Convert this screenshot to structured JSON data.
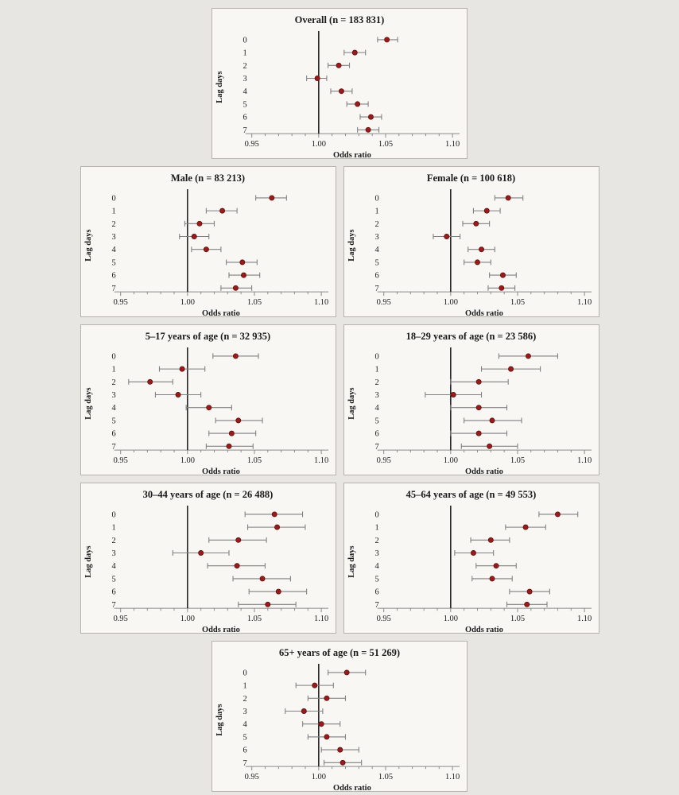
{
  "style": {
    "page_bg": "#e7e6e3",
    "panel_bg": "#f8f7f4",
    "panel_border": "#b6b3ae",
    "axis": "#8a8a8a",
    "text": "#1a1a1a",
    "refline": "#222222",
    "ci": "#808080",
    "point": "#9b1b1b",
    "pointEdge": "#5c0f0f"
  },
  "chart_data": [
    {
      "type": "scatter",
      "title": "Overall (n = 183 831)",
      "xlabel": "Odds ratio",
      "ylabel": "Lag days",
      "xlim": [
        0.95,
        1.1
      ],
      "xticks": [
        0.95,
        1.0,
        1.05,
        1.1
      ],
      "refline": 1.0,
      "categories": [
        "0",
        "1",
        "2",
        "3",
        "4",
        "5",
        "6",
        "7"
      ],
      "points": [
        {
          "or": 1.051,
          "lo": 1.044,
          "hi": 1.059
        },
        {
          "or": 1.027,
          "lo": 1.019,
          "hi": 1.035
        },
        {
          "or": 1.015,
          "lo": 1.007,
          "hi": 1.023
        },
        {
          "or": 0.999,
          "lo": 0.991,
          "hi": 1.006
        },
        {
          "or": 1.017,
          "lo": 1.009,
          "hi": 1.025
        },
        {
          "or": 1.029,
          "lo": 1.021,
          "hi": 1.037
        },
        {
          "or": 1.039,
          "lo": 1.031,
          "hi": 1.047
        },
        {
          "or": 1.037,
          "lo": 1.029,
          "hi": 1.045
        }
      ]
    },
    {
      "type": "scatter",
      "title": "Male (n = 83 213)",
      "xlabel": "Odds ratio",
      "ylabel": "Lag days",
      "xlim": [
        0.95,
        1.1
      ],
      "xticks": [
        0.95,
        1.0,
        1.05,
        1.1
      ],
      "refline": 1.0,
      "categories": [
        "0",
        "1",
        "2",
        "3",
        "4",
        "5",
        "6",
        "7"
      ],
      "points": [
        {
          "or": 1.063,
          "lo": 1.051,
          "hi": 1.074
        },
        {
          "or": 1.026,
          "lo": 1.014,
          "hi": 1.037
        },
        {
          "or": 1.009,
          "lo": 0.998,
          "hi": 1.02
        },
        {
          "or": 1.005,
          "lo": 0.994,
          "hi": 1.016
        },
        {
          "or": 1.014,
          "lo": 1.003,
          "hi": 1.025
        },
        {
          "or": 1.041,
          "lo": 1.029,
          "hi": 1.052
        },
        {
          "or": 1.042,
          "lo": 1.031,
          "hi": 1.054
        },
        {
          "or": 1.036,
          "lo": 1.025,
          "hi": 1.048
        }
      ]
    },
    {
      "type": "scatter",
      "title": "Female (n = 100 618)",
      "xlabel": "Odds ratio",
      "ylabel": "Lag days",
      "xlim": [
        0.95,
        1.1
      ],
      "xticks": [
        0.95,
        1.0,
        1.05,
        1.1
      ],
      "refline": 1.0,
      "categories": [
        "0",
        "1",
        "2",
        "3",
        "4",
        "5",
        "6",
        "7"
      ],
      "points": [
        {
          "or": 1.043,
          "lo": 1.033,
          "hi": 1.054
        },
        {
          "or": 1.027,
          "lo": 1.017,
          "hi": 1.037
        },
        {
          "or": 1.019,
          "lo": 1.009,
          "hi": 1.029
        },
        {
          "or": 0.997,
          "lo": 0.987,
          "hi": 1.007
        },
        {
          "or": 1.023,
          "lo": 1.013,
          "hi": 1.033
        },
        {
          "or": 1.02,
          "lo": 1.01,
          "hi": 1.03
        },
        {
          "or": 1.039,
          "lo": 1.029,
          "hi": 1.049
        },
        {
          "or": 1.038,
          "lo": 1.028,
          "hi": 1.048
        }
      ]
    },
    {
      "type": "scatter",
      "title": "5–17 years of age (n = 32 935)",
      "xlabel": "Odds ratio",
      "ylabel": "Lag days",
      "xlim": [
        0.95,
        1.1
      ],
      "xticks": [
        0.95,
        1.0,
        1.05,
        1.1
      ],
      "refline": 1.0,
      "categories": [
        "0",
        "1",
        "2",
        "3",
        "4",
        "5",
        "6",
        "7"
      ],
      "points": [
        {
          "or": 1.036,
          "lo": 1.019,
          "hi": 1.053
        },
        {
          "or": 0.996,
          "lo": 0.979,
          "hi": 1.013
        },
        {
          "or": 0.972,
          "lo": 0.956,
          "hi": 0.989
        },
        {
          "or": 0.993,
          "lo": 0.976,
          "hi": 1.01
        },
        {
          "or": 1.016,
          "lo": 0.999,
          "hi": 1.033
        },
        {
          "or": 1.038,
          "lo": 1.021,
          "hi": 1.056
        },
        {
          "or": 1.033,
          "lo": 1.016,
          "hi": 1.051
        },
        {
          "or": 1.031,
          "lo": 1.014,
          "hi": 1.049
        }
      ]
    },
    {
      "type": "scatter",
      "title": "18–29 years of age (n = 23 586)",
      "xlabel": "Odds ratio",
      "ylabel": "Lag days",
      "xlim": [
        0.95,
        1.1
      ],
      "xticks": [
        0.95,
        1.0,
        1.05,
        1.1
      ],
      "refline": 1.0,
      "categories": [
        "0",
        "1",
        "2",
        "3",
        "4",
        "5",
        "6",
        "7"
      ],
      "points": [
        {
          "or": 1.058,
          "lo": 1.036,
          "hi": 1.08
        },
        {
          "or": 1.045,
          "lo": 1.023,
          "hi": 1.067
        },
        {
          "or": 1.021,
          "lo": 1.0,
          "hi": 1.043
        },
        {
          "or": 1.002,
          "lo": 0.981,
          "hi": 1.023
        },
        {
          "or": 1.021,
          "lo": 1.0,
          "hi": 1.042
        },
        {
          "or": 1.031,
          "lo": 1.01,
          "hi": 1.053
        },
        {
          "or": 1.021,
          "lo": 1.0,
          "hi": 1.042
        },
        {
          "or": 1.029,
          "lo": 1.008,
          "hi": 1.05
        }
      ]
    },
    {
      "type": "scatter",
      "title": "30–44 years of age (n = 26 488)",
      "xlabel": "Odds ratio",
      "ylabel": "Lag days",
      "xlim": [
        0.95,
        1.1
      ],
      "xticks": [
        0.95,
        1.0,
        1.05,
        1.1
      ],
      "refline": 1.0,
      "categories": [
        "0",
        "1",
        "2",
        "3",
        "4",
        "5",
        "6",
        "7"
      ],
      "points": [
        {
          "or": 1.065,
          "lo": 1.043,
          "hi": 1.086
        },
        {
          "or": 1.067,
          "lo": 1.045,
          "hi": 1.088
        },
        {
          "or": 1.038,
          "lo": 1.016,
          "hi": 1.059
        },
        {
          "or": 1.01,
          "lo": 0.989,
          "hi": 1.031
        },
        {
          "or": 1.037,
          "lo": 1.015,
          "hi": 1.058
        },
        {
          "or": 1.056,
          "lo": 1.034,
          "hi": 1.077
        },
        {
          "or": 1.068,
          "lo": 1.046,
          "hi": 1.089
        },
        {
          "or": 1.06,
          "lo": 1.038,
          "hi": 1.081
        }
      ]
    },
    {
      "type": "scatter",
      "title": "45–64 years of age (n = 49 553)",
      "xlabel": "Odds ratio",
      "ylabel": "Lag days",
      "xlim": [
        0.95,
        1.1
      ],
      "xticks": [
        0.95,
        1.0,
        1.05,
        1.1
      ],
      "refline": 1.0,
      "categories": [
        "0",
        "1",
        "2",
        "3",
        "4",
        "5",
        "6",
        "7"
      ],
      "points": [
        {
          "or": 1.08,
          "lo": 1.066,
          "hi": 1.095
        },
        {
          "or": 1.056,
          "lo": 1.041,
          "hi": 1.071
        },
        {
          "or": 1.03,
          "lo": 1.015,
          "hi": 1.044
        },
        {
          "or": 1.017,
          "lo": 1.003,
          "hi": 1.032
        },
        {
          "or": 1.034,
          "lo": 1.019,
          "hi": 1.049
        },
        {
          "or": 1.031,
          "lo": 1.016,
          "hi": 1.046
        },
        {
          "or": 1.059,
          "lo": 1.044,
          "hi": 1.074
        },
        {
          "or": 1.057,
          "lo": 1.042,
          "hi": 1.072
        }
      ]
    },
    {
      "type": "scatter",
      "title": "65+ years of age (n = 51 269)",
      "xlabel": "Odds ratio",
      "ylabel": "Lag days",
      "xlim": [
        0.95,
        1.1
      ],
      "xticks": [
        0.95,
        1.0,
        1.05,
        1.1
      ],
      "refline": 1.0,
      "categories": [
        "0",
        "1",
        "2",
        "3",
        "4",
        "5",
        "6",
        "7"
      ],
      "points": [
        {
          "or": 1.021,
          "lo": 1.007,
          "hi": 1.035
        },
        {
          "or": 0.997,
          "lo": 0.983,
          "hi": 1.011
        },
        {
          "or": 1.006,
          "lo": 0.992,
          "hi": 1.02
        },
        {
          "or": 0.989,
          "lo": 0.975,
          "hi": 1.003
        },
        {
          "or": 1.002,
          "lo": 0.988,
          "hi": 1.016
        },
        {
          "or": 1.006,
          "lo": 0.992,
          "hi": 1.02
        },
        {
          "or": 1.016,
          "lo": 1.002,
          "hi": 1.03
        },
        {
          "or": 1.018,
          "lo": 1.004,
          "hi": 1.032
        }
      ]
    }
  ]
}
